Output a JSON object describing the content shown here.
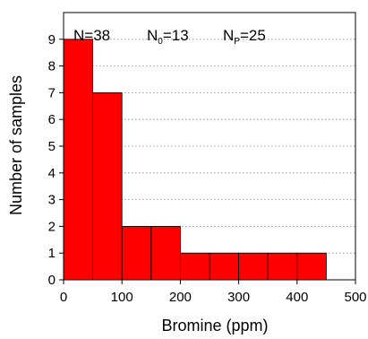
{
  "chart_data": {
    "type": "bar",
    "bin_edges": [
      0,
      50,
      100,
      150,
      200,
      250,
      300,
      350,
      400,
      450
    ],
    "values": [
      9,
      7,
      2,
      2,
      1,
      1,
      1,
      1,
      1
    ],
    "xlabel": "Bromine (ppm)",
    "ylabel": "Number  of  samples",
    "xlim": [
      0,
      500
    ],
    "ylim": [
      0,
      10
    ],
    "x_ticks": [
      0,
      100,
      200,
      300,
      400,
      500
    ],
    "y_ticks": [
      0,
      1,
      2,
      3,
      4,
      5,
      6,
      7,
      8,
      9
    ],
    "grid": "horizontal dotted",
    "bar_color": "#ff0000",
    "annotations": {
      "n_total": "N=38",
      "n0_main": "N",
      "n0_sub": "0",
      "n0_value": "=13",
      "np_main": "N",
      "np_sub": "P",
      "np_value": "=25"
    }
  }
}
